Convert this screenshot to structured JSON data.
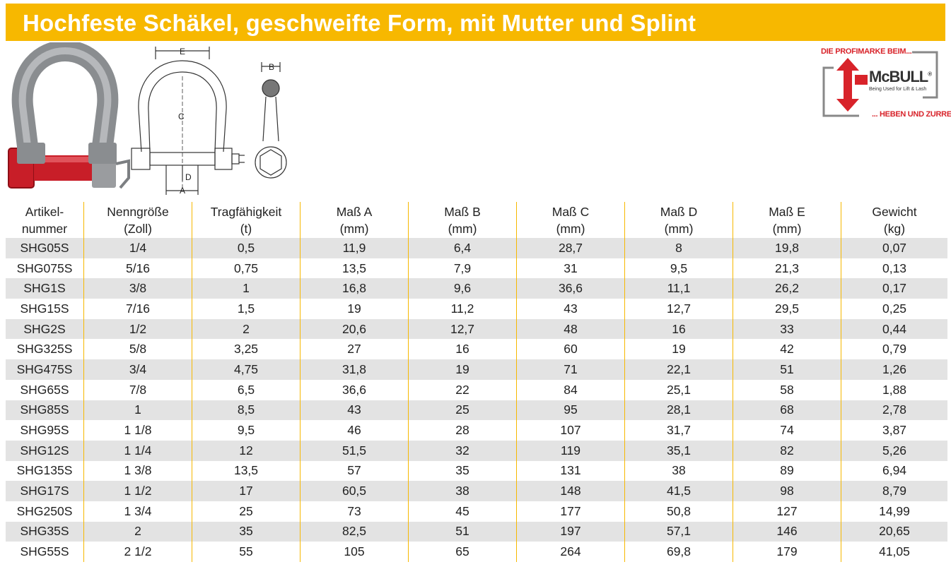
{
  "title": "Hochfeste Schäkel, geschweifte Form, mit Mutter und Splint",
  "colors": {
    "accent": "#f7b800",
    "brand_red": "#d8232a",
    "row_shade": "#e3e3e3"
  },
  "diagram": {
    "label_e": "E",
    "label_c": "C",
    "label_d": "D",
    "label_a": "A",
    "label_b": "B"
  },
  "logo": {
    "top": "DIE PROFIMARKE BEIM...",
    "brand": "McBULL",
    "registered": "®",
    "sub": "Being Used for Lift & Lash",
    "bottom": "... HEBEN UND ZURREN"
  },
  "table": {
    "headers": [
      [
        "Artikel-",
        "nummer"
      ],
      [
        "Nenngröße",
        "(Zoll)"
      ],
      [
        "Tragfähigkeit",
        "(t)"
      ],
      [
        "Maß A",
        "(mm)"
      ],
      [
        "Maß B",
        "(mm)"
      ],
      [
        "Maß C",
        "(mm)"
      ],
      [
        "Maß D",
        "(mm)"
      ],
      [
        "Maß E",
        "(mm)"
      ],
      [
        "Gewicht",
        "(kg)"
      ]
    ],
    "rows": [
      [
        "SHG05S",
        "1/4",
        "0,5",
        "11,9",
        "6,4",
        "28,7",
        "8",
        "19,8",
        "0,07"
      ],
      [
        "SHG075S",
        "5/16",
        "0,75",
        "13,5",
        "7,9",
        "31",
        "9,5",
        "21,3",
        "0,13"
      ],
      [
        "SHG1S",
        "3/8",
        "1",
        "16,8",
        "9,6",
        "36,6",
        "11,1",
        "26,2",
        "0,17"
      ],
      [
        "SHG15S",
        "7/16",
        "1,5",
        "19",
        "11,2",
        "43",
        "12,7",
        "29,5",
        "0,25"
      ],
      [
        "SHG2S",
        "1/2",
        "2",
        "20,6",
        "12,7",
        "48",
        "16",
        "33",
        "0,44"
      ],
      [
        "SHG325S",
        "5/8",
        "3,25",
        "27",
        "16",
        "60",
        "19",
        "42",
        "0,79"
      ],
      [
        "SHG475S",
        "3/4",
        "4,75",
        "31,8",
        "19",
        "71",
        "22,1",
        "51",
        "1,26"
      ],
      [
        "SHG65S",
        "7/8",
        "6,5",
        "36,6",
        "22",
        "84",
        "25,1",
        "58",
        "1,88"
      ],
      [
        "SHG85S",
        "1",
        "8,5",
        "43",
        "25",
        "95",
        "28,1",
        "68",
        "2,78"
      ],
      [
        "SHG95S",
        "1 1/8",
        "9,5",
        "46",
        "28",
        "107",
        "31,7",
        "74",
        "3,87"
      ],
      [
        "SHG12S",
        "1 1/4",
        "12",
        "51,5",
        "32",
        "119",
        "35,1",
        "82",
        "5,26"
      ],
      [
        "SHG135S",
        "1 3/8",
        "13,5",
        "57",
        "35",
        "131",
        "38",
        "89",
        "6,94"
      ],
      [
        "SHG17S",
        "1 1/2",
        "17",
        "60,5",
        "38",
        "148",
        "41,5",
        "98",
        "8,79"
      ],
      [
        "SHG250S",
        "1 3/4",
        "25",
        "73",
        "45",
        "177",
        "50,8",
        "127",
        "14,99"
      ],
      [
        "SHG35S",
        "2",
        "35",
        "82,5",
        "51",
        "197",
        "57,1",
        "146",
        "20,65"
      ],
      [
        "SHG55S",
        "2 1/2",
        "55",
        "105",
        "65",
        "264",
        "69,8",
        "179",
        "41,05"
      ]
    ]
  }
}
